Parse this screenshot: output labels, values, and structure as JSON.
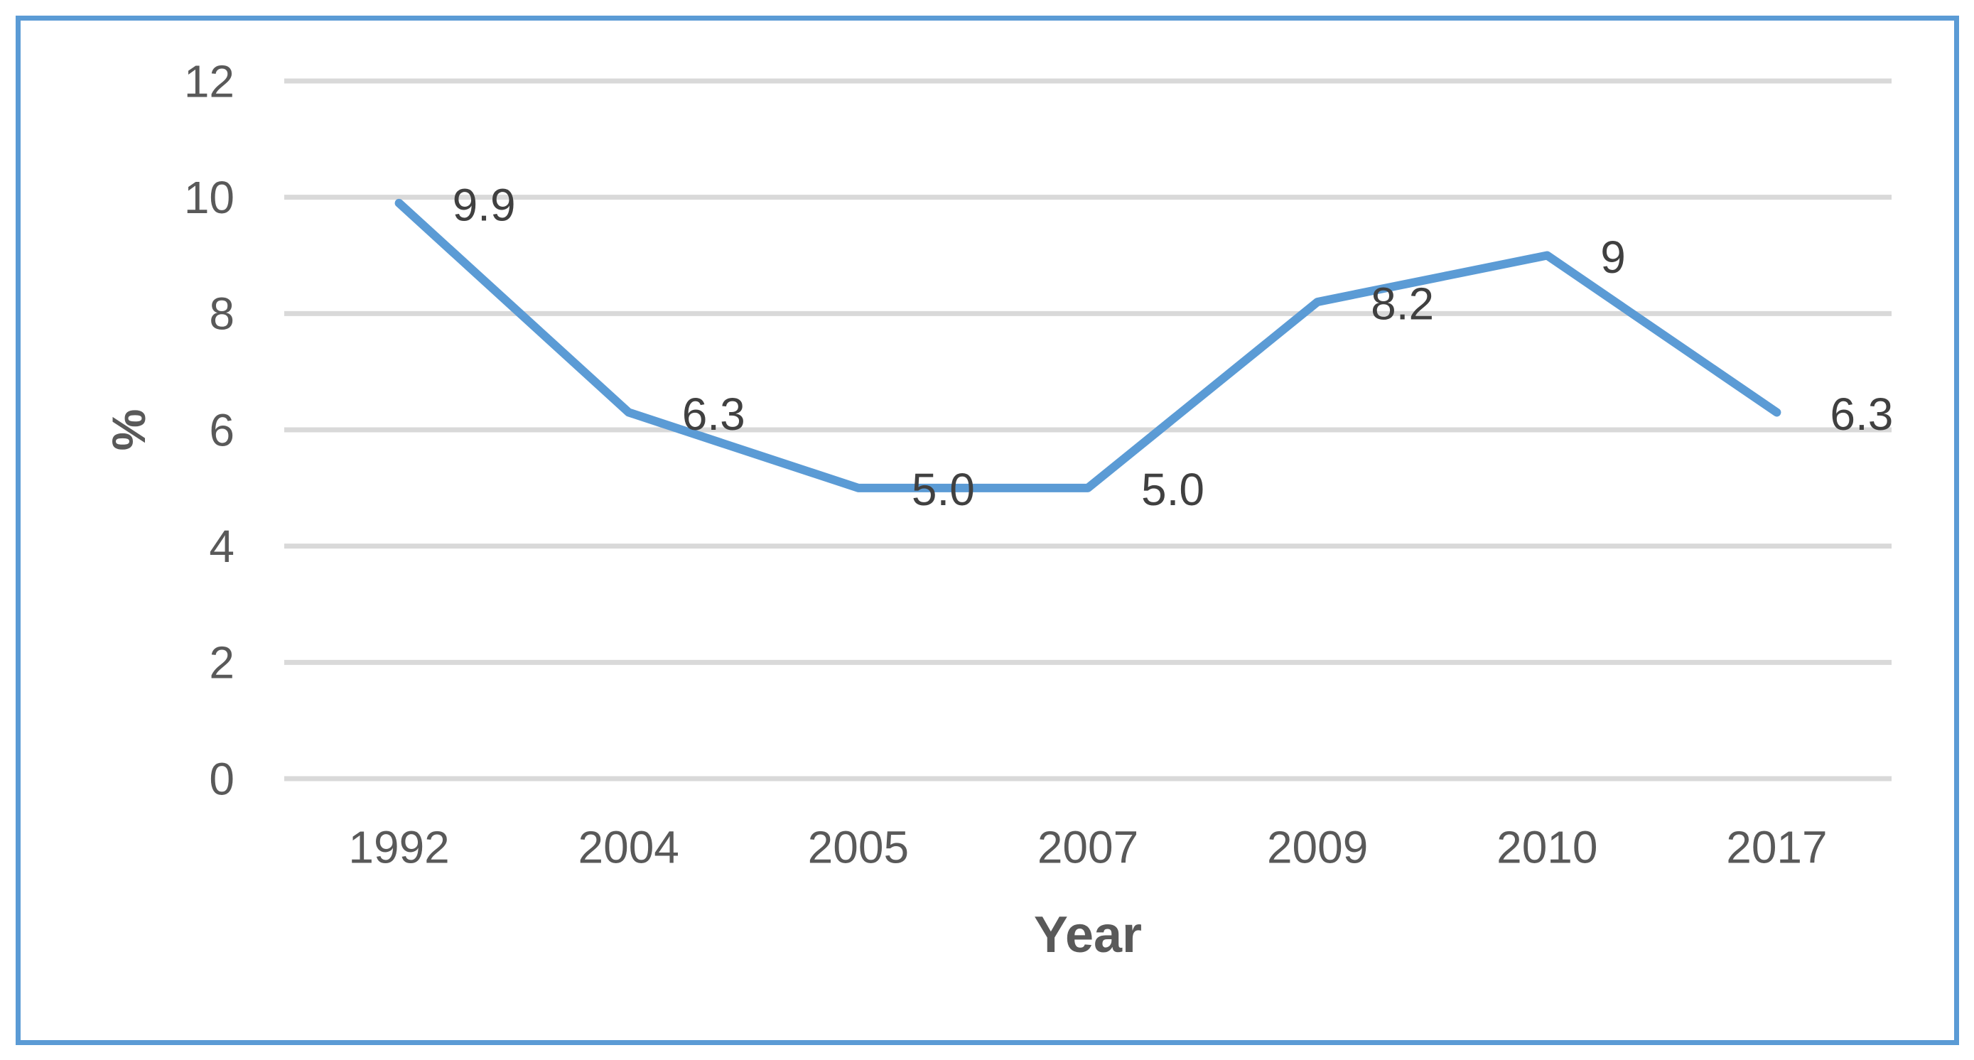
{
  "chart_data": {
    "type": "line",
    "categories": [
      "1992",
      "2004",
      "2005",
      "2007",
      "2009",
      "2010",
      "2017"
    ],
    "values": [
      9.9,
      6.3,
      5.0,
      5.0,
      8.2,
      9,
      6.3
    ],
    "point_labels": [
      "9.9",
      "6.3",
      "5.0",
      "5.0",
      "8.2",
      "9",
      "6.3"
    ],
    "title": "",
    "xlabel": "Year",
    "ylabel": "%",
    "y_ticks": [
      "0",
      "2",
      "4",
      "6",
      "8",
      "10",
      "12"
    ],
    "ylim": [
      0,
      12
    ],
    "grid": "horizontal",
    "legend": "none",
    "colors": {
      "line": "#5B9BD5",
      "gridline": "#D9D9D9",
      "tick_text": "#595959",
      "axis_title_text": "#595959",
      "data_label_text": "#404040",
      "frame_border": "#5B9BD5",
      "background": "#FFFFFF"
    }
  }
}
